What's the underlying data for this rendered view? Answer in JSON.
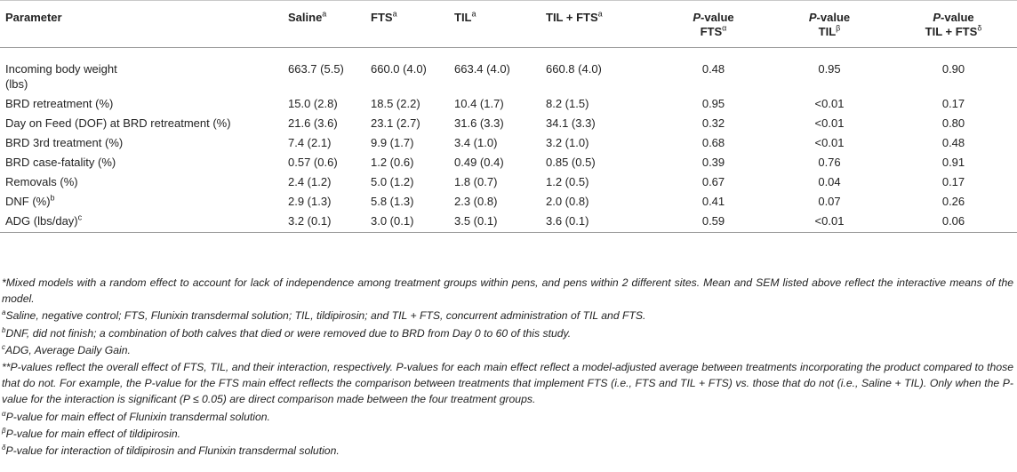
{
  "header": {
    "parameter": "Parameter",
    "saline": "Saline",
    "saline_sup": "a",
    "fts": "FTS",
    "fts_sup": "a",
    "til": "TIL",
    "til_sup": "a",
    "tilfts": "TIL + FTS",
    "tilfts_sup": "a",
    "p_italic": "P",
    "p_rest": "-value",
    "pfts_line2": "FTS",
    "pfts_sup": "α",
    "ptil_line2": "TIL",
    "ptil_sup": "β",
    "pint_line2": "TIL + FTS",
    "pint_sup": "δ"
  },
  "rows": [
    {
      "param": "Incoming body weight",
      "param2": "(lbs)",
      "saline": "663.7 (5.5)",
      "fts": "660.0 (4.0)",
      "til": "663.4 (4.0)",
      "tilfts": "660.8 (4.0)",
      "p_fts": "0.48",
      "p_til": "0.95",
      "p_int": "0.90"
    },
    {
      "param": "BRD retreatment (%)",
      "saline": "15.0 (2.8)",
      "fts": "18.5 (2.2)",
      "til": "10.4 (1.7)",
      "tilfts": "8.2 (1.5)",
      "p_fts": "0.95",
      "p_til": "<0.01",
      "p_int": "0.17"
    },
    {
      "param": "Day on Feed (DOF) at BRD retreatment (%)",
      "saline": "21.6 (3.6)",
      "fts": "23.1 (2.7)",
      "til": "31.6 (3.3)",
      "tilfts": "34.1 (3.3)",
      "p_fts": "0.32",
      "p_til": "<0.01",
      "p_int": "0.80"
    },
    {
      "param": "BRD 3rd treatment (%)",
      "saline": "7.4 (2.1)",
      "fts": "9.9 (1.7)",
      "til": "3.4 (1.0)",
      "tilfts": "3.2 (1.0)",
      "p_fts": "0.68",
      "p_til": "<0.01",
      "p_int": "0.48"
    },
    {
      "param": "BRD case-fatality (%)",
      "saline": "0.57 (0.6)",
      "fts": "1.2 (0.6)",
      "til": "0.49 (0.4)",
      "tilfts": "0.85 (0.5)",
      "p_fts": "0.39",
      "p_til": "0.76",
      "p_int": "0.91"
    },
    {
      "param": "Removals (%)",
      "saline": "2.4 (1.2)",
      "fts": "5.0 (1.2)",
      "til": "1.8 (0.7)",
      "tilfts": "1.2 (0.5)",
      "p_fts": "0.67",
      "p_til": "0.04",
      "p_int": "0.17"
    },
    {
      "param": "DNF (%)",
      "param_sup": "b",
      "saline": "2.9 (1.3)",
      "fts": "5.8 (1.3)",
      "til": "2.3 (0.8)",
      "tilfts": "2.0 (0.8)",
      "p_fts": "0.41",
      "p_til": "0.07",
      "p_int": "0.26"
    },
    {
      "param": "ADG (lbs/day)",
      "param_sup": "c",
      "saline": "3.2 (0.1)",
      "fts": "3.0 (0.1)",
      "til": "3.5 (0.1)",
      "tilfts": "3.6 (0.1)",
      "p_fts": "0.59",
      "p_til": "<0.01",
      "p_int": "0.06"
    }
  ],
  "notes": {
    "n1": "*Mixed models with a random effect to account for lack of independence among treatment groups within pens, and pens within 2 different sites. Mean and SEM listed above reflect the interactive means of the model.",
    "n2_sup": "a",
    "n2": "Saline, negative control; FTS, Flunixin transdermal solution; TIL, tildipirosin; and TIL + FTS, concurrent administration of TIL and FTS.",
    "n3_sup": "b",
    "n3": "DNF, did not finish; a combination of both calves that died or were removed due to BRD from Day 0 to 60 of this study.",
    "n4_sup": "c",
    "n4": "ADG, Average Daily Gain.",
    "n5": "**P-values reflect the overall effect of FTS, TIL, and their interaction, respectively. P-values for each main effect reflect a model-adjusted average between treatments incorporating the product compared to those that do not. For example, the P-value for the FTS main effect reflects the comparison between treatments that implement FTS (i.e., FTS and TIL + FTS) vs. those that do not (i.e., Saline + TIL). Only when the P-value for the interaction is significant (P ≤ 0.05) are direct comparison made between the four treatment groups.",
    "n6_sup": "α",
    "n6": "P-value for main effect of Flunixin transdermal solution.",
    "n7_sup": "β",
    "n7": "P-value for main effect of tildipirosin.",
    "n8_sup": "δ",
    "n8": "P-value for interaction of tildipirosin and Flunixin transdermal solution."
  }
}
